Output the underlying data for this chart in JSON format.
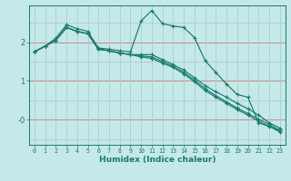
{
  "xlabel": "Humidex (Indice chaleur)",
  "bg_color": "#c5e8e8",
  "grid_color": "#a8d0d0",
  "line_color": "#1a7a6e",
  "red_line_color": "#c87878",
  "xlim": [
    -0.5,
    23.5
  ],
  "ylim": [
    -0.65,
    2.95
  ],
  "series": [
    [
      1.75,
      1.9,
      2.1,
      2.45,
      2.35,
      2.28,
      1.85,
      1.82,
      1.78,
      1.75,
      2.55,
      2.82,
      2.48,
      2.42,
      2.38,
      2.12,
      1.52,
      1.22,
      0.92,
      0.65,
      0.58,
      -0.08,
      -0.18,
      -0.28
    ],
    [
      1.75,
      1.9,
      2.05,
      2.38,
      2.28,
      2.22,
      1.82,
      1.78,
      1.72,
      1.68,
      1.68,
      1.68,
      1.55,
      1.42,
      1.28,
      1.08,
      0.88,
      0.72,
      0.58,
      0.42,
      0.28,
      0.12,
      -0.08,
      -0.22
    ],
    [
      1.75,
      1.9,
      2.05,
      2.38,
      2.28,
      2.22,
      1.82,
      1.78,
      1.72,
      1.68,
      1.65,
      1.62,
      1.5,
      1.38,
      1.22,
      1.02,
      0.8,
      0.62,
      0.46,
      0.3,
      0.16,
      0.01,
      -0.12,
      -0.28
    ],
    [
      1.75,
      1.9,
      2.05,
      2.38,
      2.28,
      2.22,
      1.82,
      1.78,
      1.72,
      1.68,
      1.62,
      1.58,
      1.46,
      1.35,
      1.18,
      0.98,
      0.75,
      0.58,
      0.42,
      0.26,
      0.12,
      -0.04,
      -0.17,
      -0.32
    ]
  ]
}
